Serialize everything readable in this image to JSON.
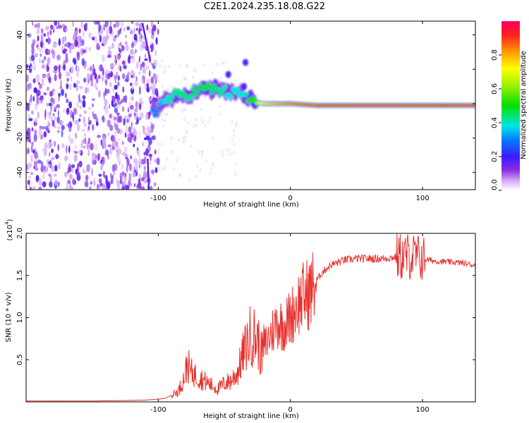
{
  "title": "C2E1.2024.235.18.08.G22",
  "chart_data": [
    {
      "type": "heatmap",
      "name": "spectrogram",
      "xlabel": "Height of straight line (km)",
      "ylabel": "Frequency (Hz)",
      "xlim": [
        -200,
        140
      ],
      "ylim": [
        -50,
        48
      ],
      "xticks": [
        -100,
        0,
        100
      ],
      "yticks": [
        -40,
        -20,
        0,
        20,
        40
      ],
      "colorbar": {
        "label": "Normalized spectral amplitude",
        "range": [
          0.0,
          1.0
        ],
        "ticks": [
          0.0,
          0.2,
          0.4,
          0.6,
          0.8
        ]
      },
      "noise_region": {
        "x_range": [
          -200,
          -100
        ],
        "frequency_range": [
          -50,
          48
        ]
      },
      "signal_track": [
        {
          "x": -102,
          "f": -4,
          "amp": 0.35
        },
        {
          "x": -95,
          "f": 2,
          "amp": 0.45
        },
        {
          "x": -85,
          "f": 5,
          "amp": 0.5
        },
        {
          "x": -75,
          "f": 6,
          "amp": 0.5
        },
        {
          "x": -65,
          "f": 9,
          "amp": 0.55
        },
        {
          "x": -55,
          "f": 8,
          "amp": 0.5
        },
        {
          "x": -45,
          "f": 6,
          "amp": 0.45
        },
        {
          "x": -35,
          "f": 5,
          "amp": 0.45
        },
        {
          "x": -28,
          "f": 1,
          "amp": 0.6
        },
        {
          "x": -20,
          "f": 0,
          "amp": 0.75
        },
        {
          "x": -10,
          "f": 0,
          "amp": 0.8
        },
        {
          "x": 0,
          "f": 0,
          "amp": 0.85
        },
        {
          "x": 20,
          "f": -1,
          "amp": 0.9
        },
        {
          "x": 50,
          "f": -1,
          "amp": 0.95
        },
        {
          "x": 80,
          "f": -1,
          "amp": 0.95
        },
        {
          "x": 100,
          "f": -1,
          "amp": 0.9
        },
        {
          "x": 135,
          "f": -1,
          "amp": 0.95
        }
      ],
      "side_features": [
        {
          "x": -47,
          "f": 17
        },
        {
          "x": -34,
          "f": 24
        },
        {
          "x": -35,
          "f": 10
        }
      ]
    },
    {
      "type": "line",
      "name": "snr",
      "xlabel": "Height of straight line (km)",
      "ylabel": "SNR (10 * v/v)",
      "y_multiplier_label": "(x10",
      "y_multiplier_exponent": "4",
      "xlim": [
        -200,
        140
      ],
      "ylim": [
        0,
        2.0
      ],
      "xticks": [
        -100,
        0,
        100
      ],
      "yticks": [
        0.5,
        1.0,
        1.5,
        2.0
      ],
      "color": "#e8302c",
      "series": [
        {
          "name": "SNR",
          "x": [
            -200,
            -150,
            -110,
            -95,
            -85,
            -80,
            -78,
            -75,
            -70,
            -65,
            -60,
            -55,
            -50,
            -45,
            -40,
            -35,
            -30,
            -25,
            -22,
            -20,
            -15,
            -10,
            -5,
            0,
            5,
            10,
            15,
            20,
            25,
            30,
            40,
            50,
            60,
            70,
            80,
            85,
            90,
            95,
            100,
            110,
            120,
            130,
            140
          ],
          "values": [
            0.01,
            0.01,
            0.02,
            0.04,
            0.12,
            0.3,
            0.45,
            0.35,
            0.3,
            0.25,
            0.2,
            0.15,
            0.22,
            0.25,
            0.35,
            0.6,
            0.8,
            0.75,
            0.55,
            0.65,
            0.8,
            0.95,
            0.9,
            1.0,
            1.15,
            1.25,
            1.3,
            1.45,
            1.55,
            1.62,
            1.68,
            1.7,
            1.7,
            1.7,
            1.72,
            1.72,
            1.73,
            1.72,
            1.7,
            1.67,
            1.66,
            1.65,
            1.62
          ]
        }
      ]
    }
  ]
}
